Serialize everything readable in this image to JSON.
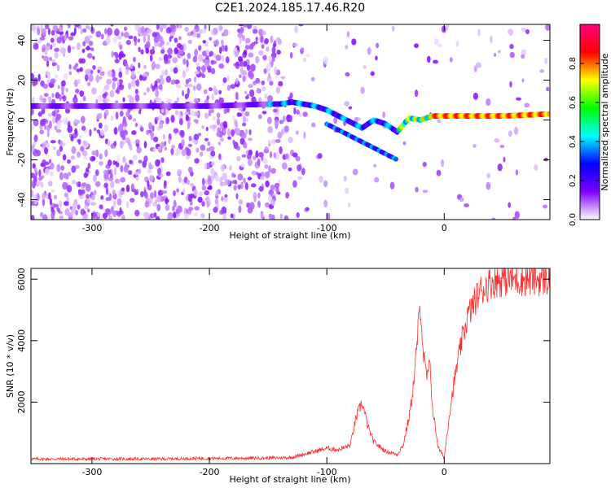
{
  "title": "C2E1.2024.185.17.46.R20",
  "chart_data": [
    {
      "type": "heatmap",
      "xlabel": "Height of straight line (km)",
      "ylabel": "Frequency (Hz)",
      "xlim": [
        -352,
        90
      ],
      "ylim": [
        -50,
        48
      ],
      "xticks": [
        -300,
        -200,
        -100,
        0
      ],
      "yticks": [
        -40,
        -20,
        0,
        20,
        40
      ],
      "colorbar": {
        "label": "Normalized spectral amplitude",
        "range": [
          0,
          1
        ],
        "ticks": [
          "0.0",
          "0.2",
          "0.4",
          "0.6",
          "0.8"
        ],
        "tick_values": [
          0.0,
          0.2,
          0.4,
          0.6,
          0.8
        ],
        "colors": [
          "#ffffff",
          "#8000ff",
          "#0000ff",
          "#00ffff",
          "#00ff00",
          "#ffff00",
          "#ff0000",
          "#ff0080"
        ]
      },
      "ridge": {
        "x": [
          -352,
          -300,
          -250,
          -200,
          -150,
          -140,
          -130,
          -120,
          -110,
          -100,
          -90,
          -80,
          -70,
          -60,
          -50,
          -40,
          -30,
          -20,
          -10,
          0,
          20,
          50,
          90
        ],
        "y": [
          7,
          7,
          7,
          7,
          8,
          8,
          9,
          8,
          7,
          5,
          2,
          -1,
          -4,
          0,
          -2,
          -6,
          1,
          0,
          2,
          2,
          2,
          2,
          3
        ]
      },
      "branch": {
        "x": [
          -100,
          -80,
          -60,
          -50,
          -40
        ],
        "y": [
          -2,
          -8,
          -14,
          -17,
          -20
        ]
      }
    },
    {
      "type": "line",
      "xlabel": "Height of straight line (km)",
      "ylabel": "SNR (10 * v/v)",
      "xlim": [
        -352,
        90
      ],
      "ylim": [
        0,
        6350
      ],
      "xticks": [
        -300,
        -200,
        -100,
        0
      ],
      "yticks": [
        2000,
        4000,
        6000
      ],
      "color": "#ff2a2a",
      "x": [
        -352,
        -300,
        -250,
        -200,
        -150,
        -130,
        -120,
        -110,
        -100,
        -90,
        -80,
        -75,
        -70,
        -65,
        -60,
        -50,
        -40,
        -35,
        -30,
        -28,
        -25,
        -22,
        -20,
        -18,
        -15,
        -12,
        -10,
        -5,
        0,
        5,
        10,
        15,
        20,
        30,
        40,
        50,
        60,
        70,
        80,
        90
      ],
      "y": [
        150,
        150,
        150,
        170,
        180,
        200,
        300,
        400,
        500,
        450,
        600,
        1500,
        2000,
        1200,
        700,
        400,
        300,
        600,
        1500,
        2000,
        3000,
        4500,
        5200,
        3600,
        2800,
        3200,
        1800,
        500,
        200,
        1800,
        3000,
        4000,
        4800,
        5600,
        5900,
        6000,
        6000,
        6000,
        6000,
        6000
      ]
    }
  ]
}
